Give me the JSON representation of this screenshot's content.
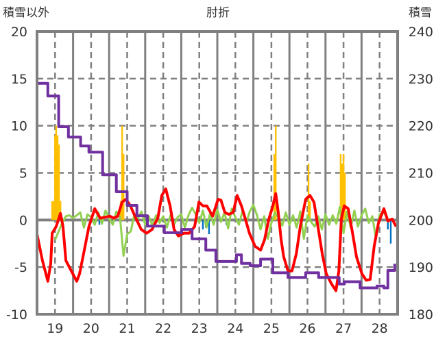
{
  "chart_data": {
    "type": "line",
    "title": "肘折",
    "ylabel_left": "積雪以外",
    "ylabel_right": "積雪",
    "ylim_left": [
      -10,
      20
    ],
    "ylim_right": [
      180,
      240
    ],
    "xlim": [
      18.5,
      28.5
    ],
    "yticks_left": [
      "20",
      "15",
      "10",
      "5",
      "0",
      "-5",
      "-10"
    ],
    "yticks_right": [
      "240",
      "230",
      "220",
      "210",
      "200",
      "190",
      "180"
    ],
    "xticks": [
      "19",
      "20",
      "21",
      "22",
      "23",
      "24",
      "25",
      "26",
      "27",
      "28"
    ],
    "grid": true,
    "colors": {
      "red": "#ff0000",
      "purple": "#7030a0",
      "green": "#92d050",
      "yellow": "#ffc000",
      "blue": "#0070c0"
    },
    "series": [
      {
        "name": "red",
        "axis": "left",
        "x": [
          18.5,
          18.65,
          18.8,
          18.88,
          18.92,
          19.03,
          19.15,
          19.22,
          19.3,
          19.45,
          19.6,
          19.68,
          19.79,
          19.94,
          20.1,
          20.25,
          20.4,
          20.52,
          20.63,
          20.74,
          20.86,
          20.97,
          21.09,
          21.24,
          21.39,
          21.54,
          21.69,
          21.85,
          21.96,
          22.07,
          22.19,
          22.3,
          22.42,
          22.57,
          22.72,
          22.87,
          22.99,
          23.1,
          23.21,
          23.37,
          23.52,
          23.6,
          23.71,
          23.82,
          23.94,
          24.05,
          24.17,
          24.28,
          24.39,
          24.55,
          24.7,
          24.81,
          24.93,
          25.04,
          25.12,
          25.19,
          25.27,
          25.34,
          25.46,
          25.57,
          25.69,
          25.8,
          25.95,
          26.07,
          26.18,
          26.29,
          26.41,
          26.52,
          26.67,
          26.79,
          26.87,
          26.94,
          27.02,
          27.13,
          27.25,
          27.36,
          27.51,
          27.63,
          27.74,
          27.85,
          27.97,
          28.12,
          28.23,
          28.35,
          28.46
        ],
        "y": [
          -1.5,
          -4.3,
          -6.5,
          -4.6,
          -1.4,
          -0.7,
          0.7,
          -0.7,
          -4.3,
          -5.4,
          -6.5,
          -5.7,
          -3.6,
          -0.7,
          1.2,
          0.2,
          0.3,
          0.4,
          0.2,
          0.4,
          1.9,
          2.2,
          1.5,
          0.2,
          -1,
          -1.4,
          -1,
          0.2,
          2.6,
          3.3,
          1.5,
          -1,
          -1.7,
          -1.4,
          -1.4,
          -0.7,
          1.9,
          1.5,
          1.5,
          0.4,
          2.2,
          2.1,
          0.8,
          0.6,
          0.8,
          2.6,
          1.5,
          0.1,
          -1.4,
          -2.8,
          -3.2,
          -2.1,
          0.1,
          1.5,
          2.8,
          0.8,
          -2.1,
          -3.9,
          -5.4,
          -5.4,
          -3.6,
          -0.7,
          2.2,
          2.6,
          1.9,
          -0.7,
          -3.6,
          -5.7,
          -6.8,
          -7.5,
          -5.4,
          0.1,
          1.5,
          1.2,
          -1.4,
          -3.9,
          -5.7,
          -6.4,
          -6.3,
          -2.8,
          -0.3,
          1.2,
          -0.1,
          0.1,
          -0.7
        ]
      },
      {
        "name": "green",
        "axis": "left",
        "x0": 19.0,
        "step": 0.1,
        "y": [
          -2.1,
          -1.2,
          -0.3,
          0.4,
          0.5,
          0.2,
          0.5,
          0.8,
          -0.8,
          0.6,
          0.3,
          -0.5,
          0.8,
          -0.4,
          1.0,
          0.2,
          -0.5,
          0.9,
          0.3,
          -3.8,
          -1.5,
          -1.2,
          0.6,
          0.2,
          0.9,
          -0.5,
          0.4,
          -0.6,
          0.5,
          -0.3,
          0.4,
          -0.8,
          0.5,
          -0.5,
          0.3,
          0.6,
          -0.8,
          0.5,
          1.3,
          0.6,
          -0.3,
          1.0,
          -0.8,
          0.7,
          -0.5,
          1.1,
          -0.2,
          0.8,
          -0.9,
          1.2,
          0.3,
          -0.5,
          1.0,
          -0.3,
          0.9,
          1.6,
          0.5,
          -1.0,
          0.4,
          -2.0,
          -0.3,
          0.8,
          0.2,
          -0.6,
          0.8,
          -0.5,
          0.5,
          -0.8,
          0.9,
          -2.0,
          0.5,
          -0.2,
          -0.7,
          0.4,
          -1.0,
          0.6,
          -0.5,
          0.5,
          -0.4,
          1.4,
          -1.4,
          0.9,
          -0.8,
          1.0,
          -0.7,
          0.5,
          1.2,
          -0.3,
          0.4,
          -2.0,
          0.6,
          0.8,
          0.4
        ]
      },
      {
        "name": "purple",
        "axis": "right",
        "step": true,
        "x": [
          18.5,
          18.8,
          19.1,
          19.37,
          19.71,
          19.94,
          20.32,
          20.7,
          21.0,
          21.27,
          21.56,
          22.03,
          22.32,
          22.51,
          22.8,
          23.18,
          23.46,
          23.94,
          24.03,
          24.17,
          24.41,
          24.7,
          24.93,
          25.04,
          25.27,
          25.46,
          25.84,
          25.95,
          26.21,
          26.31,
          26.79,
          26.88,
          27.02,
          27.36,
          27.46,
          27.84,
          27.93,
          28.12,
          28.23,
          28.42
        ],
        "y": [
          229,
          226.3,
          219.8,
          217.6,
          215.7,
          214.4,
          209.6,
          206,
          203.1,
          200.9,
          198.7,
          197.3,
          197.3,
          198,
          196,
          193.6,
          191.2,
          191.2,
          192.6,
          190.8,
          190.3,
          191.7,
          191.7,
          188.8,
          188.8,
          187.8,
          187.8,
          188.8,
          188.8,
          187.8,
          187.8,
          186.4,
          186.9,
          186.9,
          185.6,
          185.6,
          186,
          185.6,
          189.3,
          190.7
        ]
      }
    ],
    "bars": [
      {
        "name": "yellow",
        "axis": "left",
        "x": [
          18.92,
          18.96,
          19.0,
          19.03,
          19.07,
          19.11,
          19.15,
          20.82,
          20.86,
          20.9,
          25.08,
          25.12,
          26.03,
          26.07,
          26.92,
          26.96,
          27.0,
          27.04
        ],
        "y": [
          2,
          2,
          9,
          10,
          9,
          8,
          2,
          2,
          10,
          7,
          7,
          10,
          6,
          2,
          7,
          6,
          7,
          5
        ]
      },
      {
        "name": "blue",
        "axis": "left",
        "x": [
          20.23,
          23.1,
          23.18,
          23.27,
          23.75,
          28.23,
          28.31
        ],
        "y": [
          -0.5,
          -1,
          -0.8,
          -1.5,
          -0.5,
          -1,
          -2.5
        ]
      }
    ]
  }
}
